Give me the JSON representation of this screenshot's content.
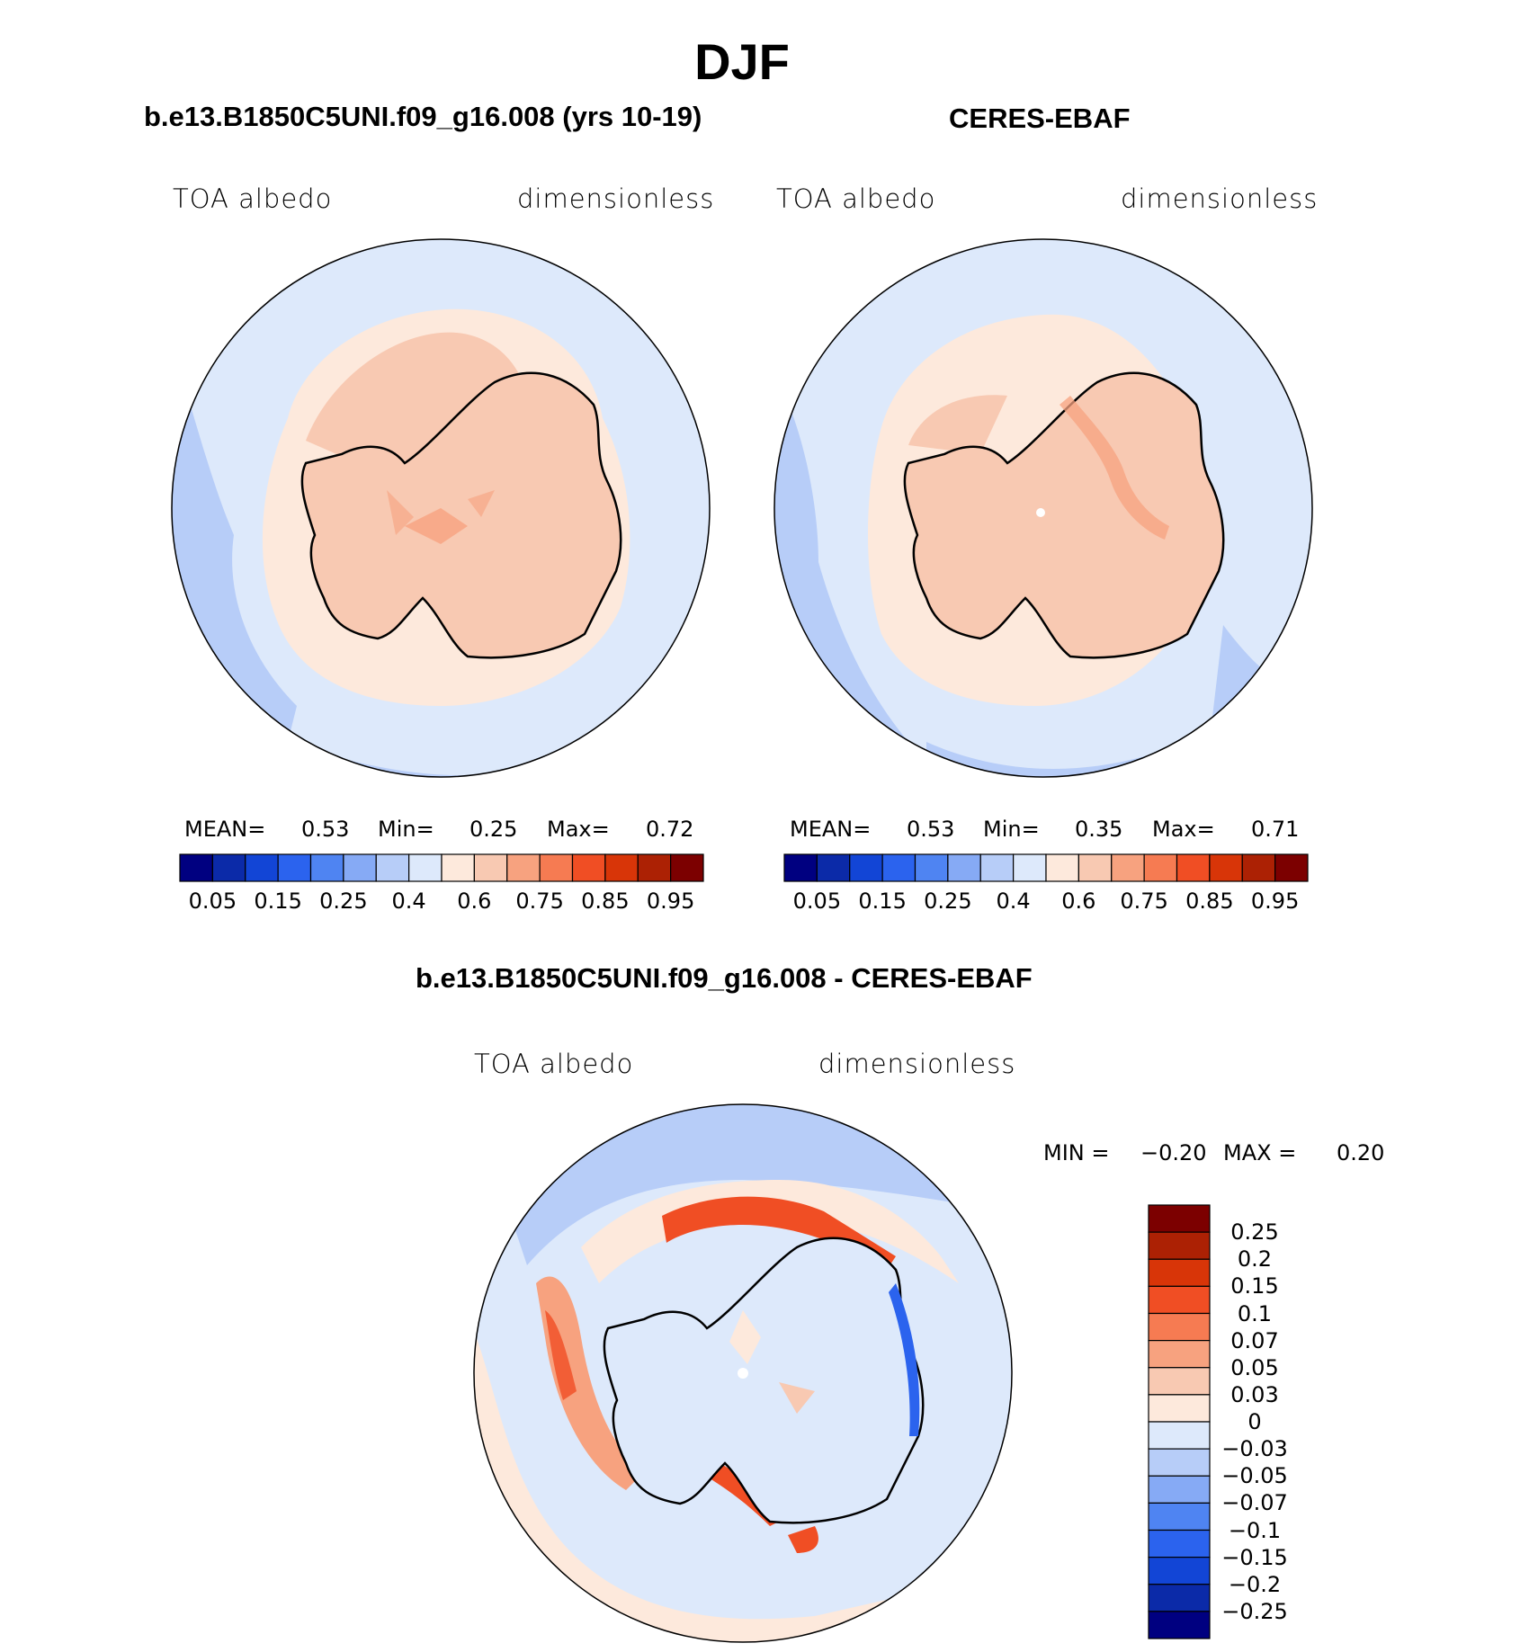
{
  "figure": {
    "title": "DJF",
    "panels": [
      {
        "id": "model",
        "header": "b.e13.B1850C5UNI.f09_g16.008 (yrs 10-19)",
        "variable": "TOA albedo",
        "units": "dimensionless",
        "stats": {
          "mean_label": "MEAN=",
          "mean": "0.53",
          "min_label": "Min=",
          "min": "0.25",
          "max_label": "Max=",
          "max": "0.72"
        }
      },
      {
        "id": "obs",
        "header": "CERES-EBAF",
        "variable": "TOA albedo",
        "units": "dimensionless",
        "stats": {
          "mean_label": "MEAN=",
          "mean": "0.53",
          "min_label": "Min=",
          "min": "0.35",
          "max_label": "Max=",
          "max": "0.71"
        }
      },
      {
        "id": "diff",
        "header": "b.e13.B1850C5UNI.f09_g16.008 - CERES-EBAF",
        "variable": "TOA albedo",
        "units": "dimensionless",
        "stats": {
          "min_label": "MIN =",
          "min": "−0.20",
          "max_label": "MAX =",
          "max": "0.20"
        }
      }
    ],
    "colorbar_abs": {
      "colors": [
        "#000080",
        "#0b2aa8",
        "#1245d6",
        "#2b63ee",
        "#4f84f2",
        "#86aaf5",
        "#b7cdf8",
        "#dde9fb",
        "#fde9dc",
        "#f8c9b2",
        "#f7a27f",
        "#f67b52",
        "#f04e24",
        "#d83508",
        "#ac2104",
        "#7c0000"
      ],
      "tick_labels": [
        "0.05",
        "0.15",
        "0.25",
        "0.4",
        "0.6",
        "0.75",
        "0.85",
        "0.95"
      ]
    },
    "colorbar_diff": {
      "colors": [
        "#7c0000",
        "#ac2104",
        "#d83508",
        "#f04e24",
        "#f67b52",
        "#f7a27f",
        "#f8c9b2",
        "#fde9dc",
        "#dde9fb",
        "#b7cdf8",
        "#86aaf5",
        "#4f84f2",
        "#2b63ee",
        "#1245d6",
        "#0b2aa8",
        "#000080"
      ],
      "tick_labels": [
        "0.25",
        "0.2",
        "0.15",
        "0.1",
        "0.07",
        "0.05",
        "0.03",
        "0",
        "−0.03",
        "−0.05",
        "−0.07",
        "−0.1",
        "−0.15",
        "−0.2",
        "−0.25"
      ]
    },
    "map_colors": {
      "ocean_light": "#dde9fb",
      "ocean_mid": "#b7cdf8",
      "ice_light": "#fde9dc",
      "ice_mid": "#f8c9b2",
      "ice_high": "#f7a27f",
      "diff_red": "#f04e24",
      "diff_blue": "#2b63ee",
      "coast": "#000000"
    }
  }
}
